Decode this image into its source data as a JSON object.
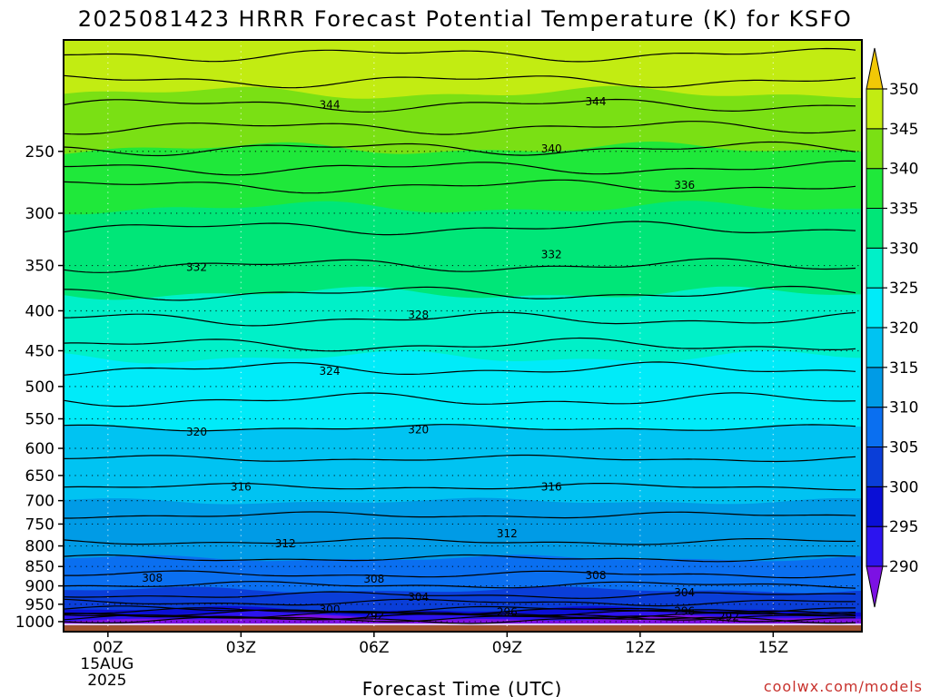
{
  "title": "2025081423 HRRR Forecast Potential Temperature (K) for KSFO",
  "credit": "coolwx.com/models",
  "chart_data": {
    "type": "heatmap",
    "title": "2025081423 HRRR Forecast Potential Temperature (K) for KSFO",
    "xlabel": "Forecast Time (UTC)",
    "ylabel": "",
    "x_range_hours": [
      -1,
      17
    ],
    "x_ticks": [
      {
        "h": 0,
        "label": "00Z",
        "sub": [
          "15AUG",
          "2025"
        ]
      },
      {
        "h": 3,
        "label": "03Z"
      },
      {
        "h": 6,
        "label": "06Z"
      },
      {
        "h": 9,
        "label": "09Z"
      },
      {
        "h": 12,
        "label": "12Z"
      },
      {
        "h": 15,
        "label": "15Z"
      }
    ],
    "y_axis": "pressure (hPa), log scale, decreasing upward",
    "y_range": [
      1030,
      180
    ],
    "y_ticks": [
      250,
      300,
      350,
      400,
      450,
      500,
      550,
      600,
      650,
      700,
      750,
      800,
      850,
      900,
      950,
      1000
    ],
    "grid": "dotted",
    "colorbar": {
      "levels": [
        290,
        295,
        300,
        305,
        310,
        315,
        320,
        325,
        330,
        335,
        340,
        345,
        350
      ],
      "colors": [
        "#7c11e3",
        "#2c14ef",
        "#0a0fd6",
        "#0a3ed8",
        "#0a6ff0",
        "#009be6",
        "#00c3f2",
        "#00ebf9",
        "#00f0c8",
        "#00e678",
        "#1fe83a",
        "#7ae014",
        "#c2ec12",
        "#ffff00",
        "#f2c806"
      ],
      "placement": "right"
    },
    "isentropes_K": [
      {
        "theta": 344,
        "p": 218
      },
      {
        "theta": 340,
        "p": 248
      },
      {
        "theta": 336,
        "p": 277
      },
      {
        "theta": 332,
        "p": 350
      },
      {
        "theta": 328,
        "p": 410
      },
      {
        "theta": 324,
        "p": 475
      },
      {
        "theta": 320,
        "p": 565
      },
      {
        "theta": 316,
        "p": 672
      },
      {
        "theta": 312,
        "p": 790
      },
      {
        "theta": 308,
        "p": 870
      },
      {
        "theta": 304,
        "p": 925
      },
      {
        "theta": 300,
        "p": 965
      },
      {
        "theta": 296,
        "p": 975
      },
      {
        "theta": 292,
        "p": 985
      }
    ],
    "contour_labels": [
      {
        "text": "344",
        "h": 5,
        "p": 218
      },
      {
        "text": "344",
        "h": 11,
        "p": 216
      },
      {
        "text": "340",
        "h": 10,
        "p": 248
      },
      {
        "text": "336",
        "h": 13,
        "p": 276
      },
      {
        "text": "332",
        "h": 2,
        "p": 352
      },
      {
        "text": "332",
        "h": 10,
        "p": 339
      },
      {
        "text": "328",
        "h": 7,
        "p": 405
      },
      {
        "text": "324",
        "h": 5,
        "p": 478
      },
      {
        "text": "320",
        "h": 2,
        "p": 572
      },
      {
        "text": "320",
        "h": 7,
        "p": 568
      },
      {
        "text": "316",
        "h": 3,
        "p": 672
      },
      {
        "text": "316",
        "h": 10,
        "p": 672
      },
      {
        "text": "312",
        "h": 4,
        "p": 795
      },
      {
        "text": "312",
        "h": 9,
        "p": 772
      },
      {
        "text": "308",
        "h": 1,
        "p": 880
      },
      {
        "text": "308",
        "h": 6,
        "p": 882
      },
      {
        "text": "308",
        "h": 11,
        "p": 872
      },
      {
        "text": "304",
        "h": 7,
        "p": 930
      },
      {
        "text": "304",
        "h": 13,
        "p": 918
      },
      {
        "text": "300",
        "h": 5,
        "p": 965
      },
      {
        "text": "296",
        "h": 9,
        "p": 973
      },
      {
        "text": "296",
        "h": 13,
        "p": 970
      },
      {
        "text": "292",
        "h": 6,
        "p": 983
      },
      {
        "text": "292",
        "h": 14,
        "p": 985
      }
    ],
    "surface_pressure_hPa": 1011,
    "surface_color": "#a0522d"
  }
}
